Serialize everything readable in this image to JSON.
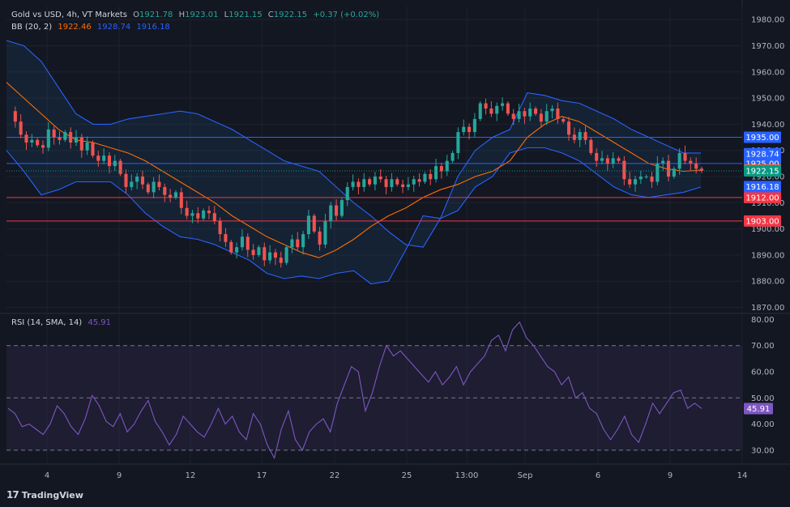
{
  "header": {
    "symbol": "Gold vs USD, 4h, VT Markets",
    "o_label": "O",
    "o": "1921.78",
    "h_label": "H",
    "h": "1923.01",
    "l_label": "L",
    "l": "1921.15",
    "c_label": "C",
    "c": "1922.15",
    "change": "+0.37 (+0.02%)"
  },
  "bb_legend": {
    "label": "BB (20, 2)",
    "basis": "1922.46",
    "upper": "1928.74",
    "lower": "1916.18"
  },
  "rsi_legend": {
    "label": "RSI (14, SMA, 14)",
    "value": "45.91"
  },
  "branding": {
    "name": "TradingView"
  },
  "colors": {
    "background": "#131722",
    "up": "#26a69a",
    "down": "#ef5350",
    "bb_band": "#2962ff",
    "bb_basis": "#ff6d00",
    "rsi": "#7e57c2",
    "h_line_blue": "#2962ff",
    "h_line_red": "#f23645"
  },
  "chart_data": [
    {
      "type": "candlestick",
      "title": "Gold vs USD, 4h, VT Markets",
      "ylim": [
        1868,
        1985
      ],
      "y_ticks": [
        1870,
        1880,
        1890,
        1900,
        1910,
        1920,
        1930,
        1940,
        1950,
        1960,
        1970,
        1980
      ],
      "x_tick_labels": [
        "4",
        "9",
        "12",
        "17",
        "22",
        "25",
        "13:00",
        "Sep",
        "6",
        "9",
        "14"
      ],
      "horizontal_lines": [
        {
          "value": 1935.0,
          "label": "1935.00",
          "color": "#2962ff"
        },
        {
          "value": 1925.0,
          "label": "1925.00",
          "color": "#2962ff"
        },
        {
          "value": 1912.0,
          "label": "1912.00",
          "color": "#f23645"
        },
        {
          "value": 1903.0,
          "label": "1903.00",
          "color": "#f23645"
        }
      ],
      "price_badges": [
        {
          "value": 1928.74,
          "label": "1928.74",
          "color": "#2962ff"
        },
        {
          "value": 1922.46,
          "label": "1922.46",
          "color": "#ff6d00"
        },
        {
          "value": 1922.15,
          "label": "1922.15",
          "color": "#089981"
        },
        {
          "value": 1916.18,
          "label": "1916.18",
          "color": "#2962ff"
        }
      ],
      "last_price": 1922.15,
      "close_path": [
        1945,
        1941,
        1936,
        1933,
        1934,
        1932,
        1931,
        1938,
        1935,
        1934,
        1937,
        1933,
        1935,
        1930,
        1933,
        1928,
        1926,
        1928,
        1924,
        1926,
        1921,
        1916,
        1918,
        1920,
        1917,
        1914,
        1918,
        1916,
        1913,
        1912,
        1914,
        1908,
        1905,
        1906,
        1904,
        1907,
        1906,
        1903,
        1898,
        1895,
        1891,
        1893,
        1897,
        1892,
        1890,
        1893,
        1888,
        1891,
        1889,
        1887,
        1893,
        1896,
        1893,
        1898,
        1905,
        1899,
        1894,
        1903,
        1909,
        1905,
        1911,
        1916,
        1918,
        1916,
        1919,
        1917,
        1920,
        1919,
        1916,
        1919,
        1917,
        1916,
        1917,
        1919,
        1918,
        1921,
        1919,
        1924,
        1922,
        1926,
        1929,
        1937,
        1939,
        1937,
        1942,
        1948,
        1946,
        1944,
        1947,
        1948,
        1944,
        1942,
        1945,
        1943,
        1946,
        1944,
        1941,
        1945,
        1946,
        1942,
        1941,
        1936,
        1934,
        1937,
        1934,
        1929,
        1926,
        1927,
        1925,
        1927,
        1926,
        1919,
        1917,
        1919,
        1920,
        1920,
        1918,
        1925,
        1926,
        1920,
        1923,
        1929,
        1926,
        1925,
        1923,
        1922.15
      ],
      "bb_upper": [
        1972,
        1970,
        1964,
        1954,
        1944,
        1940,
        1940,
        1942,
        1943,
        1944,
        1945,
        1944,
        1941,
        1938,
        1934,
        1930,
        1926,
        1924,
        1922,
        1916,
        1910,
        1905,
        1899,
        1894,
        1893,
        1904,
        1920,
        1930,
        1935,
        1938,
        1952,
        1951,
        1949,
        1948,
        1945,
        1942,
        1938,
        1935,
        1932,
        1929,
        1929
      ],
      "bb_lower": [
        1930,
        1922,
        1913,
        1915,
        1918,
        1918,
        1918,
        1913,
        1906,
        1901,
        1897,
        1896,
        1894,
        1891,
        1888,
        1883,
        1881,
        1882,
        1881,
        1883,
        1884,
        1879,
        1880,
        1892,
        1905,
        1904,
        1907,
        1916,
        1920,
        1929,
        1931,
        1931,
        1929,
        1926,
        1921,
        1916,
        1913,
        1912,
        1913,
        1914,
        1916
      ],
      "bb_basis": [
        1956,
        1950,
        1944,
        1938,
        1934,
        1933,
        1931,
        1929,
        1926,
        1922,
        1918,
        1914,
        1910,
        1905,
        1901,
        1897,
        1894,
        1891,
        1889,
        1892,
        1896,
        1901,
        1905,
        1908,
        1912,
        1915,
        1917,
        1920,
        1922,
        1926,
        1935,
        1940,
        1943,
        1941,
        1937,
        1933,
        1929,
        1925,
        1923,
        1922,
        1922.46
      ]
    },
    {
      "type": "line",
      "title": "RSI (14, SMA, 14)",
      "ylim": [
        25,
        82
      ],
      "y_ticks": [
        30,
        40,
        50,
        60,
        70,
        80
      ],
      "bands": [
        30,
        50,
        70
      ],
      "series": [
        {
          "name": "RSI",
          "values": [
            46,
            44,
            39,
            40,
            38,
            36,
            40,
            47,
            44,
            39,
            36,
            42,
            51,
            47,
            41,
            39,
            44,
            37,
            40,
            45,
            49,
            41,
            37,
            32,
            36,
            43,
            40,
            37,
            35,
            40,
            46,
            40,
            43,
            37,
            34,
            44,
            40,
            32,
            27,
            38,
            45,
            34,
            30,
            37,
            40,
            42,
            37,
            48,
            55,
            62,
            60,
            45,
            52,
            62,
            70,
            66,
            68,
            65,
            62,
            59,
            56,
            60,
            55,
            58,
            62,
            55,
            60,
            63,
            66,
            72,
            74,
            68,
            76,
            79,
            73,
            70,
            66,
            62,
            60,
            55,
            58,
            50,
            52,
            46,
            44,
            38,
            34,
            38,
            43,
            36,
            33,
            40,
            48,
            44,
            48,
            52,
            53,
            46,
            48,
            45.91
          ]
        }
      ],
      "current": 45.91
    }
  ]
}
